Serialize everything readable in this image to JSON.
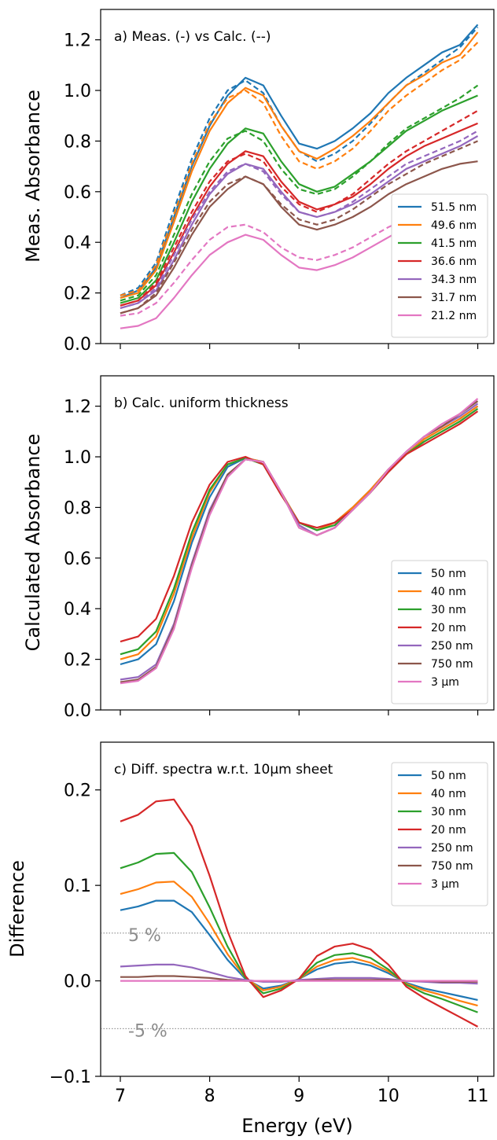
{
  "colors": [
    "#1f77b4",
    "#ff7f0e",
    "#2ca02c",
    "#d62728",
    "#9467bd",
    "#8c564b",
    "#e377c2"
  ],
  "xlabel": "Energy (eV)",
  "xticks": [
    7,
    8,
    9,
    10,
    11
  ],
  "xlim": [
    6.78,
    11.18
  ],
  "chart_data": [
    {
      "type": "line",
      "title": "a) Meas. (-) vs Calc. (--)",
      "ylabel": "Meas. Absorbance",
      "ylim": [
        0,
        1.32
      ],
      "yticks": [
        "0.0",
        "0.2",
        "0.4",
        "0.6",
        "0.8",
        "1.0",
        "1.2"
      ],
      "legend_position": "lower-right",
      "x": [
        7.0,
        7.2,
        7.4,
        7.6,
        7.8,
        8.0,
        8.2,
        8.4,
        8.6,
        8.8,
        9.0,
        9.2,
        9.4,
        9.6,
        9.8,
        10.0,
        10.2,
        10.4,
        10.6,
        10.8,
        11.0
      ],
      "series": [
        {
          "name": "51.5 nm",
          "style": "solid",
          "values": [
            0.18,
            0.21,
            0.3,
            0.5,
            0.7,
            0.86,
            0.98,
            1.05,
            1.02,
            0.9,
            0.79,
            0.77,
            0.8,
            0.85,
            0.91,
            0.99,
            1.05,
            1.1,
            1.15,
            1.18,
            1.26
          ]
        },
        {
          "name": "51.5 nm",
          "style": "dashed",
          "values": [
            0.19,
            0.22,
            0.32,
            0.53,
            0.73,
            0.89,
            1.0,
            1.04,
            0.99,
            0.86,
            0.76,
            0.72,
            0.75,
            0.8,
            0.87,
            0.95,
            1.02,
            1.07,
            1.12,
            1.17,
            1.25
          ]
        },
        {
          "name": "49.6 nm",
          "style": "solid",
          "values": [
            0.18,
            0.2,
            0.29,
            0.48,
            0.68,
            0.84,
            0.95,
            1.01,
            0.98,
            0.86,
            0.76,
            0.73,
            0.77,
            0.82,
            0.88,
            0.95,
            1.02,
            1.06,
            1.11,
            1.14,
            1.23
          ]
        },
        {
          "name": "49.6 nm",
          "style": "dashed",
          "values": [
            0.19,
            0.21,
            0.31,
            0.51,
            0.71,
            0.87,
            0.97,
            1.0,
            0.95,
            0.82,
            0.72,
            0.69,
            0.72,
            0.77,
            0.84,
            0.92,
            0.98,
            1.03,
            1.08,
            1.12,
            1.19
          ]
        },
        {
          "name": "41.5 nm",
          "style": "solid",
          "values": [
            0.16,
            0.18,
            0.25,
            0.4,
            0.56,
            0.69,
            0.79,
            0.85,
            0.83,
            0.72,
            0.63,
            0.6,
            0.62,
            0.67,
            0.72,
            0.78,
            0.84,
            0.88,
            0.92,
            0.95,
            0.98
          ]
        },
        {
          "name": "41.5 nm",
          "style": "dashed",
          "values": [
            0.17,
            0.19,
            0.27,
            0.43,
            0.59,
            0.72,
            0.81,
            0.84,
            0.8,
            0.69,
            0.61,
            0.59,
            0.61,
            0.66,
            0.72,
            0.79,
            0.85,
            0.89,
            0.93,
            0.97,
            1.02
          ]
        },
        {
          "name": "36.6 nm",
          "style": "solid",
          "values": [
            0.15,
            0.17,
            0.23,
            0.36,
            0.5,
            0.62,
            0.71,
            0.76,
            0.74,
            0.64,
            0.56,
            0.53,
            0.55,
            0.58,
            0.63,
            0.69,
            0.74,
            0.78,
            0.81,
            0.84,
            0.87
          ]
        },
        {
          "name": "36.6 nm",
          "style": "dashed",
          "values": [
            0.15,
            0.17,
            0.24,
            0.38,
            0.52,
            0.64,
            0.72,
            0.75,
            0.72,
            0.62,
            0.55,
            0.52,
            0.55,
            0.59,
            0.65,
            0.71,
            0.76,
            0.8,
            0.84,
            0.88,
            0.92
          ]
        },
        {
          "name": "34.3 nm",
          "style": "solid",
          "values": [
            0.14,
            0.16,
            0.21,
            0.33,
            0.47,
            0.59,
            0.67,
            0.71,
            0.69,
            0.6,
            0.52,
            0.5,
            0.52,
            0.55,
            0.59,
            0.64,
            0.69,
            0.72,
            0.75,
            0.78,
            0.82
          ]
        },
        {
          "name": "34.3 nm",
          "style": "dashed",
          "values": [
            0.14,
            0.16,
            0.22,
            0.35,
            0.49,
            0.6,
            0.68,
            0.71,
            0.68,
            0.59,
            0.52,
            0.5,
            0.52,
            0.56,
            0.61,
            0.66,
            0.71,
            0.74,
            0.77,
            0.8,
            0.84
          ]
        },
        {
          "name": "31.7 nm",
          "style": "solid",
          "values": [
            0.12,
            0.14,
            0.19,
            0.3,
            0.43,
            0.54,
            0.61,
            0.66,
            0.63,
            0.54,
            0.47,
            0.45,
            0.47,
            0.5,
            0.54,
            0.59,
            0.63,
            0.66,
            0.69,
            0.71,
            0.72
          ]
        },
        {
          "name": "31.7 nm",
          "style": "dashed",
          "values": [
            0.12,
            0.14,
            0.2,
            0.32,
            0.45,
            0.56,
            0.63,
            0.66,
            0.63,
            0.55,
            0.49,
            0.47,
            0.49,
            0.53,
            0.58,
            0.63,
            0.67,
            0.71,
            0.74,
            0.77,
            0.8
          ]
        },
        {
          "name": "21.2 nm",
          "style": "solid",
          "values": [
            0.06,
            0.07,
            0.1,
            0.18,
            0.27,
            0.35,
            0.4,
            0.43,
            0.41,
            0.35,
            0.3,
            0.29,
            0.31,
            0.34,
            0.38,
            0.42,
            0.46,
            0.49,
            0.51,
            0.53,
            0.55
          ]
        },
        {
          "name": "21.2 nm",
          "style": "dashed",
          "values": [
            0.11,
            0.12,
            0.16,
            0.24,
            0.33,
            0.41,
            0.46,
            0.47,
            0.44,
            0.38,
            0.34,
            0.33,
            0.35,
            0.38,
            0.42,
            0.46,
            0.49,
            0.52,
            0.54,
            0.56,
            0.58
          ]
        }
      ]
    },
    {
      "type": "line",
      "title": "b) Calc. uniform thickness",
      "ylabel": "Calculated Absorbance",
      "ylim": [
        0,
        1.32
      ],
      "yticks": [
        "0.0",
        "0.2",
        "0.4",
        "0.6",
        "0.8",
        "1.0",
        "1.2"
      ],
      "legend_position": "lower-right",
      "x": [
        7.0,
        7.2,
        7.4,
        7.6,
        7.8,
        8.0,
        8.2,
        8.4,
        8.6,
        8.8,
        9.0,
        9.2,
        9.4,
        9.6,
        9.8,
        10.0,
        10.2,
        10.4,
        10.6,
        10.8,
        11.0
      ],
      "series": [
        {
          "name": "50 nm",
          "values": [
            0.18,
            0.2,
            0.26,
            0.43,
            0.66,
            0.84,
            0.96,
            0.995,
            0.98,
            0.86,
            0.74,
            0.71,
            0.74,
            0.8,
            0.87,
            0.95,
            1.01,
            1.07,
            1.11,
            1.15,
            1.2
          ]
        },
        {
          "name": "40 nm",
          "values": [
            0.2,
            0.22,
            0.29,
            0.46,
            0.68,
            0.86,
            0.97,
            0.995,
            0.98,
            0.86,
            0.74,
            0.71,
            0.74,
            0.8,
            0.87,
            0.95,
            1.01,
            1.07,
            1.11,
            1.15,
            1.2
          ]
        },
        {
          "name": "30 nm",
          "values": [
            0.22,
            0.24,
            0.31,
            0.48,
            0.7,
            0.87,
            0.97,
            0.995,
            0.97,
            0.85,
            0.74,
            0.71,
            0.73,
            0.79,
            0.86,
            0.94,
            1.01,
            1.06,
            1.1,
            1.14,
            1.19
          ]
        },
        {
          "name": "20 nm",
          "values": [
            0.27,
            0.29,
            0.36,
            0.53,
            0.74,
            0.89,
            0.98,
            1.0,
            0.97,
            0.85,
            0.74,
            0.72,
            0.74,
            0.79,
            0.86,
            0.94,
            1.01,
            1.05,
            1.09,
            1.13,
            1.18
          ]
        },
        {
          "name": "250 nm",
          "values": [
            0.12,
            0.13,
            0.18,
            0.34,
            0.58,
            0.79,
            0.93,
            0.99,
            0.98,
            0.86,
            0.73,
            0.69,
            0.72,
            0.79,
            0.86,
            0.95,
            1.02,
            1.08,
            1.12,
            1.16,
            1.21
          ]
        },
        {
          "name": "750 nm",
          "values": [
            0.11,
            0.12,
            0.17,
            0.33,
            0.57,
            0.78,
            0.93,
            0.99,
            0.98,
            0.86,
            0.72,
            0.69,
            0.72,
            0.79,
            0.86,
            0.95,
            1.02,
            1.08,
            1.12,
            1.17,
            1.22
          ]
        },
        {
          "name": "3 μm",
          "values": [
            0.105,
            0.115,
            0.165,
            0.32,
            0.56,
            0.77,
            0.92,
            0.99,
            0.98,
            0.86,
            0.72,
            0.69,
            0.72,
            0.79,
            0.86,
            0.95,
            1.02,
            1.08,
            1.13,
            1.17,
            1.23
          ]
        }
      ]
    },
    {
      "type": "line",
      "title": "c) Diff. spectra w.r.t. 10μm sheet",
      "ylabel": "Difference",
      "ylim": [
        -0.1,
        0.25
      ],
      "yticks": [
        "−0.1",
        "0.0",
        "0.1",
        "0.2"
      ],
      "ytick_values": [
        -0.1,
        0.0,
        0.1,
        0.2
      ],
      "legend_position": "upper-right",
      "reference_lines": [
        {
          "y": 0.05,
          "label": "5 %"
        },
        {
          "y": -0.05,
          "label": "-5 %"
        }
      ],
      "x": [
        7.0,
        7.2,
        7.4,
        7.6,
        7.8,
        8.0,
        8.2,
        8.4,
        8.6,
        8.8,
        9.0,
        9.2,
        9.4,
        9.6,
        9.8,
        10.0,
        10.2,
        10.4,
        10.6,
        10.8,
        11.0
      ],
      "series": [
        {
          "name": "50 nm",
          "values": [
            0.074,
            0.078,
            0.084,
            0.084,
            0.072,
            0.048,
            0.022,
            0.002,
            -0.008,
            -0.005,
            0.002,
            0.012,
            0.018,
            0.02,
            0.016,
            0.008,
            -0.002,
            -0.008,
            -0.012,
            -0.016,
            -0.02
          ]
        },
        {
          "name": "40 nm",
          "values": [
            0.091,
            0.096,
            0.103,
            0.104,
            0.088,
            0.06,
            0.028,
            0.003,
            -0.01,
            -0.006,
            0.002,
            0.015,
            0.022,
            0.024,
            0.019,
            0.01,
            -0.003,
            -0.01,
            -0.015,
            -0.021,
            -0.026
          ]
        },
        {
          "name": "30 nm",
          "values": [
            0.118,
            0.124,
            0.133,
            0.134,
            0.114,
            0.077,
            0.036,
            0.003,
            -0.013,
            -0.008,
            0.002,
            0.019,
            0.027,
            0.029,
            0.024,
            0.012,
            -0.004,
            -0.013,
            -0.019,
            -0.026,
            -0.033
          ]
        },
        {
          "name": "20 nm",
          "values": [
            0.167,
            0.174,
            0.188,
            0.19,
            0.162,
            0.11,
            0.052,
            0.005,
            -0.017,
            -0.01,
            0.002,
            0.026,
            0.036,
            0.039,
            0.033,
            0.017,
            -0.006,
            -0.018,
            -0.028,
            -0.038,
            -0.048
          ]
        },
        {
          "name": "250 nm",
          "values": [
            0.015,
            0.016,
            0.017,
            0.017,
            0.014,
            0.009,
            0.004,
            0.001,
            -0.001,
            -0.001,
            0.001,
            0.002,
            0.003,
            0.003,
            0.003,
            0.002,
            0.0,
            -0.001,
            -0.002,
            -0.002,
            -0.003
          ]
        },
        {
          "name": "750 nm",
          "values": [
            0.004,
            0.004,
            0.005,
            0.005,
            0.004,
            0.003,
            0.001,
            0.0,
            0.0,
            0.0,
            0.0,
            0.001,
            0.001,
            0.001,
            0.001,
            0.001,
            0.0,
            0.0,
            -0.001,
            -0.001,
            -0.001
          ]
        },
        {
          "name": "3 μm",
          "values": [
            0.0,
            0.0,
            0.0,
            0.0,
            0.0,
            0.0,
            0.0,
            0.0,
            0.0,
            0.0,
            0.0,
            0.0,
            0.0,
            0.0,
            0.0,
            0.0,
            0.0,
            0.0,
            0.0,
            0.0,
            0.0
          ]
        }
      ]
    }
  ]
}
